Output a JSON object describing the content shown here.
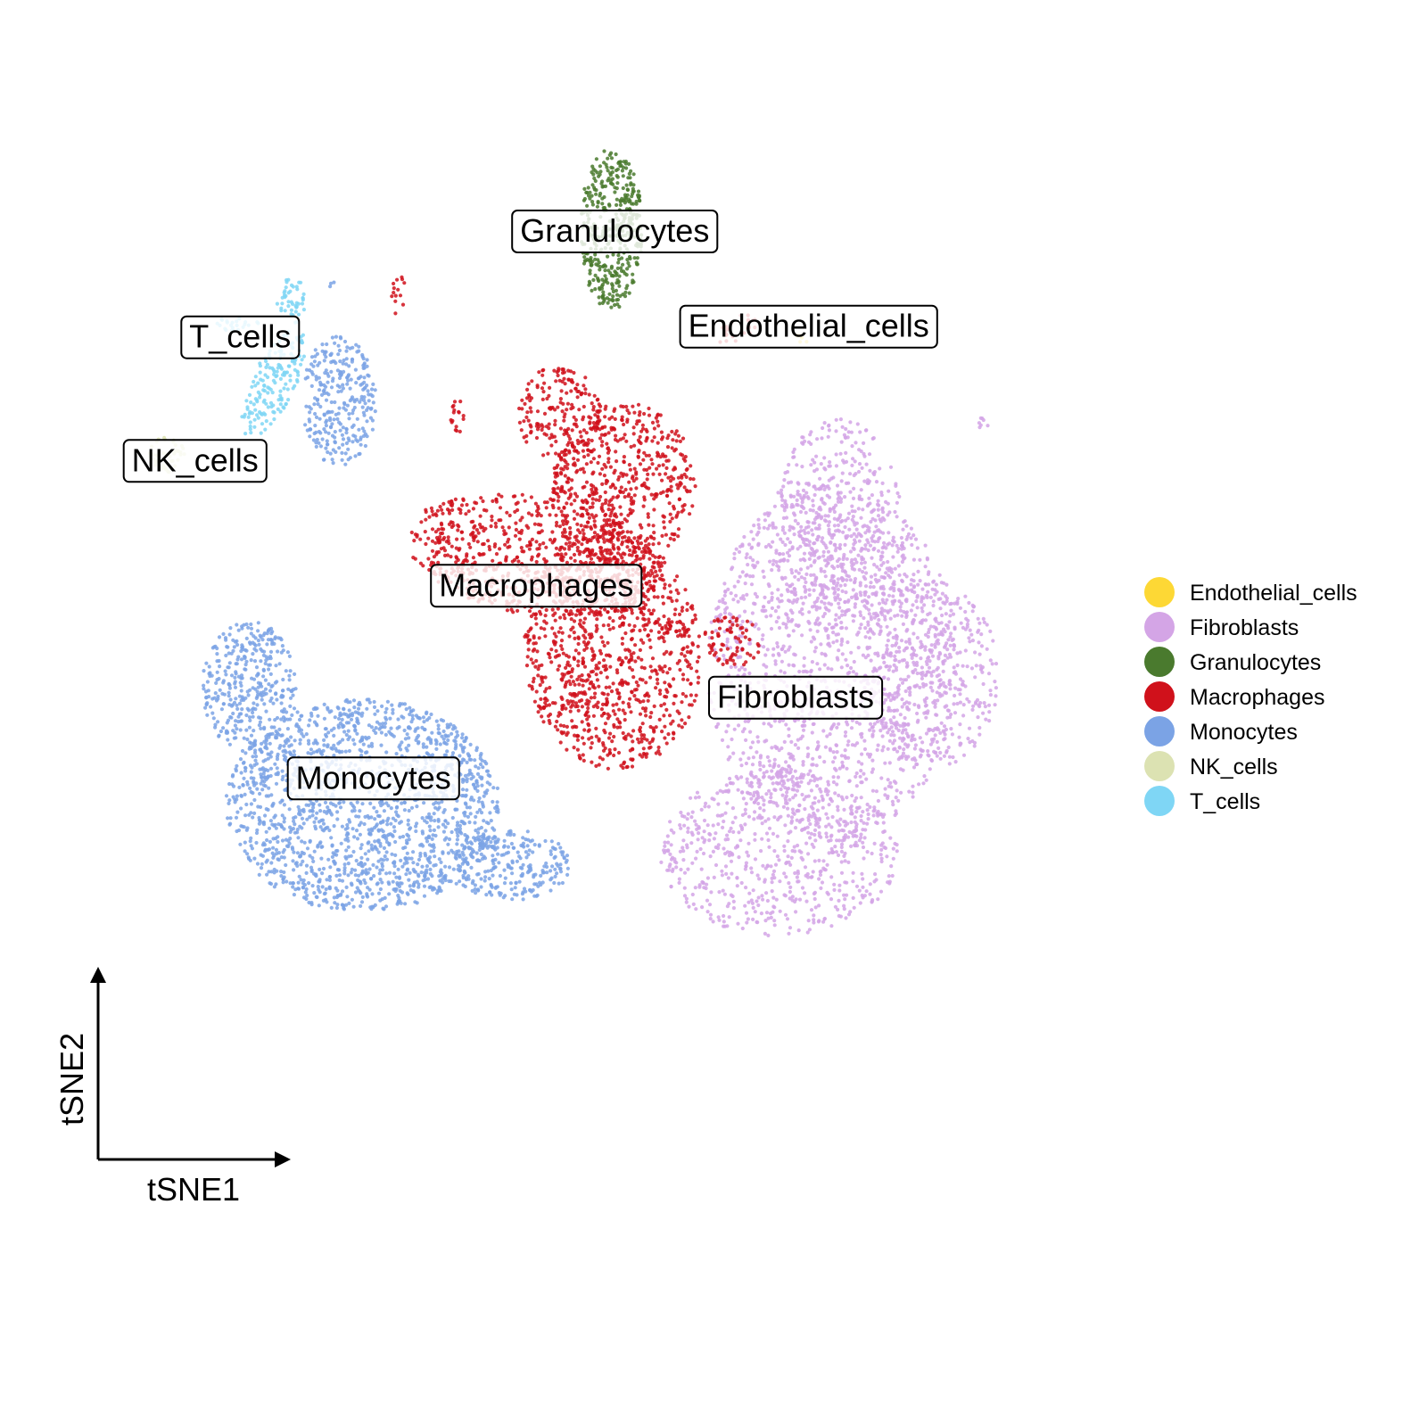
{
  "chart_data": {
    "type": "scatter",
    "title": "",
    "xlabel": "tSNE1",
    "ylabel": "tSNE2",
    "xlim": [
      -45,
      45
    ],
    "ylim": [
      -45,
      45
    ],
    "grid": false,
    "legend_position": "right",
    "series": [
      {
        "name": "Endothelial_cells",
        "color": "#FDD835"
      },
      {
        "name": "Fibroblasts",
        "color": "#D4A5E6"
      },
      {
        "name": "Granulocytes",
        "color": "#4A7A2E"
      },
      {
        "name": "Macrophages",
        "color": "#D0111B"
      },
      {
        "name": "Monocytes",
        "color": "#7BA3E5"
      },
      {
        "name": "NK_cells",
        "color": "#DCE2B2"
      },
      {
        "name": "T_cells",
        "color": "#7FD6F5"
      }
    ],
    "cluster_labels": [
      {
        "text": "Granulocytes",
        "x": 3.7,
        "y": 35.4
      },
      {
        "text": "Endothelial_cells",
        "x": 20.0,
        "y": 27.4
      },
      {
        "text": "T_cells",
        "x": -27.8,
        "y": 26.5
      },
      {
        "text": "NK_cells",
        "x": -31.6,
        "y": 16.1
      },
      {
        "text": "Macrophages",
        "x": -2.9,
        "y": 5.6
      },
      {
        "text": "Fibroblasts",
        "x": 18.9,
        "y": -3.8
      },
      {
        "text": "Monocytes",
        "x": -16.6,
        "y": -10.6
      }
    ],
    "clusters": [
      {
        "series": "Granulocytes",
        "n": 420,
        "ellipses": [
          [
            3.4,
            35.5,
            2.6,
            6.8,
            0
          ]
        ]
      },
      {
        "series": "Macrophages",
        "n": 2600,
        "ellipses": [
          [
            -3.0,
            8.0,
            11.0,
            5.0,
            -10
          ],
          [
            3.5,
            0,
            7.5,
            10,
            5
          ],
          [
            4.5,
            14,
            6,
            7,
            0
          ],
          [
            -1,
            20,
            3.5,
            4,
            0
          ],
          [
            -9.5,
            19.5,
            0.8,
            1.6,
            0
          ],
          [
            -14.5,
            30,
            0.6,
            1.8,
            0
          ],
          [
            13.5,
            0.8,
            2.5,
            2.2,
            0
          ],
          [
            14,
            27,
            1.8,
            1,
            35
          ]
        ]
      },
      {
        "series": "Monocytes",
        "n": 2600,
        "ellipses": [
          [
            -17.5,
            -13,
            11.5,
            9,
            0
          ],
          [
            -27,
            -3,
            4,
            5.5,
            0
          ],
          [
            -5,
            -18,
            5,
            3,
            0
          ],
          [
            -19.5,
            21,
            3.2,
            5.5,
            0
          ],
          [
            -20,
            30.5,
            0.3,
            0.6,
            0
          ]
        ]
      },
      {
        "series": "Fibroblasts",
        "n": 3000,
        "ellipses": [
          [
            22,
            -1,
            10.5,
            15,
            0
          ],
          [
            17.5,
            -17,
            10,
            7,
            0
          ],
          [
            22.5,
            10.5,
            5.5,
            9,
            0
          ],
          [
            30,
            -2,
            6,
            8,
            0
          ],
          [
            34.5,
            19,
            1.2,
            0.6,
            30
          ]
        ]
      },
      {
        "series": "T_cells",
        "n": 240,
        "ellipses": [
          [
            -25,
            22.5,
            1.8,
            5,
            -25
          ],
          [
            -28,
            27.5,
            1.8,
            0.7,
            0
          ],
          [
            -23.5,
            29.5,
            1.2,
            2,
            0
          ]
        ]
      },
      {
        "series": "NK_cells",
        "n": 45,
        "ellipses": [
          [
            -34,
            16.5,
            1.5,
            1.5,
            0
          ]
        ]
      },
      {
        "series": "Endothelial_cells",
        "n": 6,
        "ellipses": [
          [
            19.5,
            26.5,
            0.5,
            0.7,
            0
          ]
        ]
      }
    ]
  }
}
